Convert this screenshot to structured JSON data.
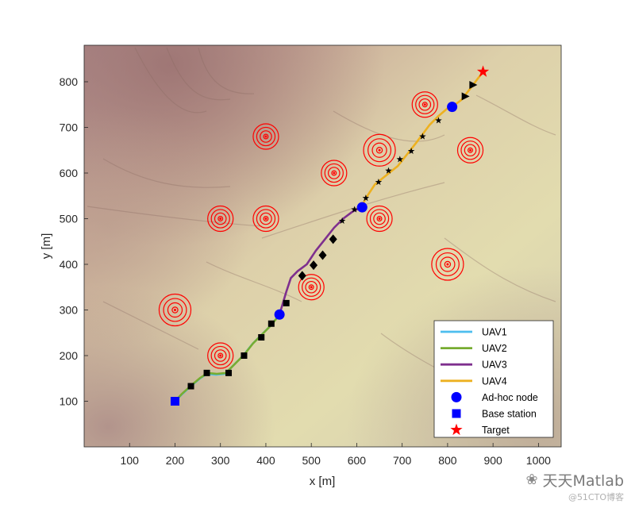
{
  "chart_data": {
    "type": "line",
    "xlabel": "x [m]",
    "ylabel": "y [m]",
    "xlim": [
      0,
      1050
    ],
    "ylim": [
      0,
      880
    ],
    "xticks": [
      100,
      200,
      300,
      400,
      500,
      600,
      700,
      800,
      900,
      1000
    ],
    "yticks": [
      100,
      200,
      300,
      400,
      500,
      600,
      700,
      800
    ],
    "background": "terrain-map",
    "legend_position": "bottom-right",
    "colors": {
      "UAV1": "#4dbeee",
      "UAV2": "#77ac30",
      "UAV3": "#7e2f8e",
      "UAV4": "#edb120",
      "threat": "#ff0000",
      "node": "#0000ff",
      "target": "#ff0000",
      "waypoint": "#000000"
    },
    "series": [
      {
        "name": "UAV1",
        "x": [
          200,
          215,
          235,
          255,
          270,
          290,
          310,
          320,
          335,
          350,
          370,
          390,
          410,
          430
        ],
        "y": [
          100,
          115,
          133,
          150,
          160,
          158,
          160,
          170,
          185,
          200,
          225,
          245,
          265,
          290
        ]
      },
      {
        "name": "UAV2",
        "x": [
          200,
          215,
          235,
          255,
          272,
          292,
          312,
          322,
          337,
          352,
          372,
          392,
          412,
          432
        ],
        "y": [
          100,
          116,
          134,
          151,
          162,
          160,
          162,
          172,
          187,
          202,
          227,
          247,
          267,
          292
        ]
      },
      {
        "name": "UAV3",
        "x": [
          430,
          445,
          455,
          470,
          490,
          510,
          530,
          550,
          570,
          590,
          610
        ],
        "y": [
          290,
          340,
          370,
          385,
          400,
          430,
          455,
          480,
          500,
          515,
          525
        ]
      },
      {
        "name": "UAV4",
        "x": [
          610,
          620,
          640,
          665,
          690,
          710,
          730,
          745,
          760,
          780,
          800,
          810,
          830,
          850,
          865,
          878
        ],
        "y": [
          525,
          545,
          575,
          595,
          615,
          640,
          665,
          685,
          705,
          725,
          742,
          745,
          760,
          785,
          805,
          822
        ]
      }
    ],
    "waypoints": {
      "x": [
        235,
        270,
        318,
        352,
        390,
        412,
        445,
        480,
        505,
        525,
        548,
        568,
        595,
        620,
        648,
        670,
        695,
        720,
        745,
        780,
        838,
        855
      ],
      "y": [
        133,
        162,
        162,
        200,
        240,
        270,
        315,
        375,
        398,
        420,
        455,
        495,
        520,
        545,
        580,
        605,
        630,
        648,
        680,
        715,
        768,
        793
      ],
      "marker": "mixed-square-diamond-triangle-star"
    },
    "threats": [
      {
        "x": 300,
        "y": 200,
        "r": 28
      },
      {
        "x": 200,
        "y": 300,
        "r": 35
      },
      {
        "x": 300,
        "y": 500,
        "r": 28
      },
      {
        "x": 400,
        "y": 500,
        "r": 28
      },
      {
        "x": 400,
        "y": 680,
        "r": 28
      },
      {
        "x": 500,
        "y": 350,
        "r": 28
      },
      {
        "x": 550,
        "y": 600,
        "r": 28
      },
      {
        "x": 650,
        "y": 650,
        "r": 35
      },
      {
        "x": 650,
        "y": 500,
        "r": 28
      },
      {
        "x": 750,
        "y": 750,
        "r": 28
      },
      {
        "x": 850,
        "y": 650,
        "r": 28
      },
      {
        "x": 800,
        "y": 400,
        "r": 35
      }
    ],
    "adhoc_nodes": {
      "x": [
        430,
        612,
        810
      ],
      "y": [
        290,
        525,
        745
      ]
    },
    "base_station": {
      "x": 200,
      "y": 100
    },
    "target": {
      "x": 878,
      "y": 822
    },
    "legend": [
      {
        "label": "UAV1",
        "kind": "line",
        "color": "#4dbeee"
      },
      {
        "label": "UAV2",
        "kind": "line",
        "color": "#77ac30"
      },
      {
        "label": "UAV3",
        "kind": "line",
        "color": "#7e2f8e"
      },
      {
        "label": "UAV4",
        "kind": "line",
        "color": "#edb120"
      },
      {
        "label": "Ad-hoc node",
        "kind": "circle",
        "color": "#0000ff"
      },
      {
        "label": "Base station",
        "kind": "square",
        "color": "#0000ff"
      },
      {
        "label": "Target",
        "kind": "star",
        "color": "#ff0000"
      }
    ]
  },
  "watermark": {
    "brand": "天天Matlab",
    "site": "@51CTO博客",
    "logo_icon": "wechat-icon"
  }
}
